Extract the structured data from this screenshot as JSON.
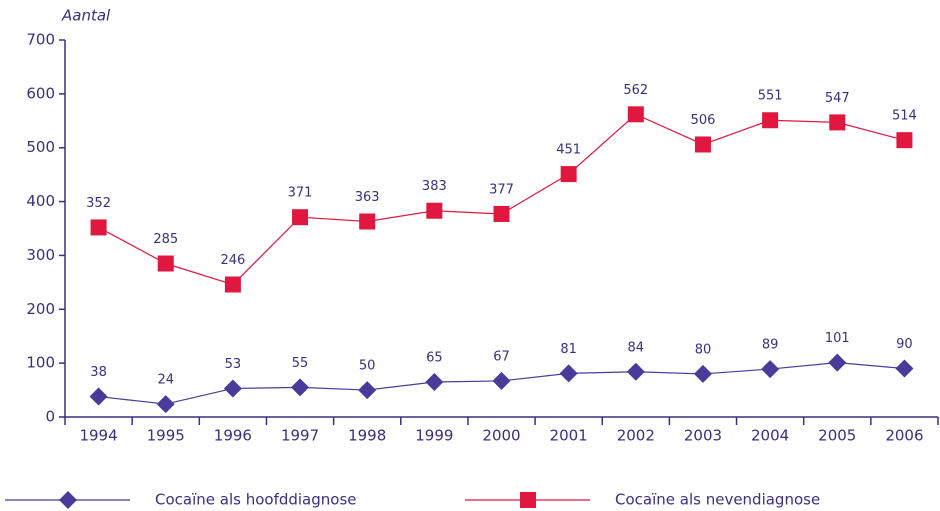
{
  "chart_data": {
    "type": "line",
    "y_label": "Aantal",
    "categories": [
      "1994",
      "1995",
      "1996",
      "1997",
      "1998",
      "1999",
      "2000",
      "2001",
      "2002",
      "2003",
      "2004",
      "2005",
      "2006"
    ],
    "series": [
      {
        "name": "Cocaïne als hoofddiagnose",
        "color": "#4a3a99",
        "marker": "diamond",
        "values": [
          38,
          24,
          53,
          55,
          50,
          65,
          67,
          81,
          84,
          80,
          89,
          101,
          90
        ]
      },
      {
        "name": "Cocaïne als nevendiagnose",
        "color": "#e0173f",
        "marker": "square",
        "values": [
          352,
          285,
          246,
          371,
          363,
          383,
          377,
          451,
          562,
          506,
          551,
          547,
          514
        ]
      }
    ],
    "ylim": [
      0,
      700
    ],
    "yticks": [
      0,
      100,
      200,
      300,
      400,
      500,
      600,
      700
    ],
    "grid": false
  }
}
